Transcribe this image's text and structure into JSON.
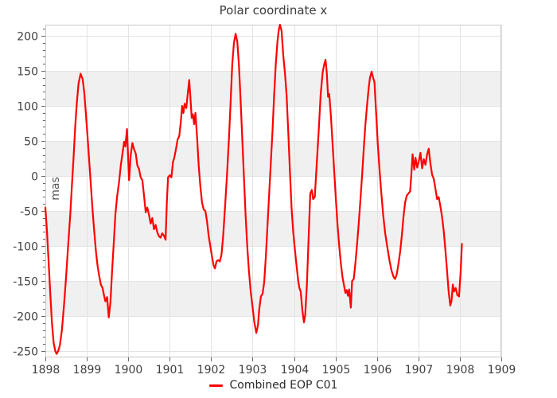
{
  "chart_data": {
    "type": "line",
    "title": "Polar coordinate x",
    "ylabel": "mas",
    "xlabel": "",
    "xlim": [
      1898,
      1909
    ],
    "ylim": [
      -259,
      216
    ],
    "x_ticks": [
      1898,
      1899,
      1900,
      1901,
      1902,
      1903,
      1904,
      1905,
      1906,
      1907,
      1908,
      1909
    ],
    "y_ticks": [
      -250,
      -200,
      -150,
      -100,
      -50,
      0,
      50,
      100,
      150,
      200
    ],
    "y_minor_step": 10,
    "grid_on": true,
    "legend_position": "bottom-center",
    "band_intervals": [
      [
        150,
        100
      ],
      [
        50,
        0
      ],
      [
        -50,
        -100
      ],
      [
        -150,
        -200
      ]
    ],
    "colors": {
      "band": "#f0f0f0",
      "grid": "#e3e3e3",
      "frame": "#c8c8c8",
      "tick": "#666666",
      "tick_label": "#404040"
    },
    "series": [
      {
        "name": "Combined EOP C01",
        "color": "#ff0000",
        "points": [
          [
            1898.0,
            -45
          ],
          [
            1898.04,
            -80
          ],
          [
            1898.08,
            -125
          ],
          [
            1898.12,
            -170
          ],
          [
            1898.16,
            -210
          ],
          [
            1898.2,
            -238
          ],
          [
            1898.24,
            -250
          ],
          [
            1898.27,
            -254
          ],
          [
            1898.31,
            -250
          ],
          [
            1898.35,
            -242
          ],
          [
            1898.4,
            -220
          ],
          [
            1898.45,
            -185
          ],
          [
            1898.5,
            -145
          ],
          [
            1898.55,
            -100
          ],
          [
            1898.6,
            -55
          ],
          [
            1898.64,
            -15
          ],
          [
            1898.68,
            25
          ],
          [
            1898.72,
            70
          ],
          [
            1898.76,
            105
          ],
          [
            1898.8,
            132
          ],
          [
            1898.85,
            146
          ],
          [
            1898.9,
            138
          ],
          [
            1898.94,
            118
          ],
          [
            1898.98,
            88
          ],
          [
            1899.02,
            55
          ],
          [
            1899.06,
            20
          ],
          [
            1899.1,
            -15
          ],
          [
            1899.14,
            -50
          ],
          [
            1899.18,
            -80
          ],
          [
            1899.22,
            -108
          ],
          [
            1899.26,
            -128
          ],
          [
            1899.3,
            -143
          ],
          [
            1899.34,
            -155
          ],
          [
            1899.38,
            -160
          ],
          [
            1899.42,
            -172
          ],
          [
            1899.45,
            -179
          ],
          [
            1899.49,
            -173
          ],
          [
            1899.53,
            -202
          ],
          [
            1899.57,
            -180
          ],
          [
            1899.61,
            -135
          ],
          [
            1899.65,
            -95
          ],
          [
            1899.69,
            -55
          ],
          [
            1899.73,
            -30
          ],
          [
            1899.78,
            -8
          ],
          [
            1899.82,
            15
          ],
          [
            1899.86,
            32
          ],
          [
            1899.9,
            49
          ],
          [
            1899.93,
            42
          ],
          [
            1899.97,
            67
          ],
          [
            1900.02,
            -6
          ],
          [
            1900.06,
            30
          ],
          [
            1900.1,
            47
          ],
          [
            1900.14,
            38
          ],
          [
            1900.18,
            32
          ],
          [
            1900.22,
            15
          ],
          [
            1900.26,
            10
          ],
          [
            1900.3,
            -2
          ],
          [
            1900.34,
            -6
          ],
          [
            1900.38,
            -28
          ],
          [
            1900.42,
            -52
          ],
          [
            1900.46,
            -45
          ],
          [
            1900.5,
            -55
          ],
          [
            1900.54,
            -68
          ],
          [
            1900.58,
            -60
          ],
          [
            1900.62,
            -76
          ],
          [
            1900.66,
            -70
          ],
          [
            1900.7,
            -80
          ],
          [
            1900.74,
            -86
          ],
          [
            1900.78,
            -88
          ],
          [
            1900.82,
            -82
          ],
          [
            1900.86,
            -85
          ],
          [
            1900.9,
            -91
          ],
          [
            1900.93,
            -40
          ],
          [
            1900.96,
            -2
          ],
          [
            1901.0,
            1
          ],
          [
            1901.04,
            -2
          ],
          [
            1901.08,
            20
          ],
          [
            1901.11,
            26
          ],
          [
            1901.15,
            38
          ],
          [
            1901.19,
            52
          ],
          [
            1901.23,
            57
          ],
          [
            1901.27,
            78
          ],
          [
            1901.3,
            100
          ],
          [
            1901.33,
            90
          ],
          [
            1901.36,
            103
          ],
          [
            1901.4,
            97
          ],
          [
            1901.44,
            120
          ],
          [
            1901.47,
            137
          ],
          [
            1901.5,
            112
          ],
          [
            1901.53,
            83
          ],
          [
            1901.56,
            88
          ],
          [
            1901.59,
            74
          ],
          [
            1901.62,
            90
          ],
          [
            1901.66,
            55
          ],
          [
            1901.7,
            15
          ],
          [
            1901.74,
            -15
          ],
          [
            1901.78,
            -38
          ],
          [
            1901.82,
            -48
          ],
          [
            1901.86,
            -50
          ],
          [
            1901.9,
            -65
          ],
          [
            1901.94,
            -85
          ],
          [
            1901.98,
            -100
          ],
          [
            1902.02,
            -115
          ],
          [
            1902.06,
            -128
          ],
          [
            1902.09,
            -132
          ],
          [
            1902.13,
            -122
          ],
          [
            1902.17,
            -120
          ],
          [
            1902.21,
            -122
          ],
          [
            1902.25,
            -112
          ],
          [
            1902.29,
            -85
          ],
          [
            1902.33,
            -48
          ],
          [
            1902.38,
            0
          ],
          [
            1902.43,
            55
          ],
          [
            1902.47,
            105
          ],
          [
            1902.51,
            160
          ],
          [
            1902.55,
            190
          ],
          [
            1902.59,
            203
          ],
          [
            1902.63,
            192
          ],
          [
            1902.67,
            158
          ],
          [
            1902.71,
            110
          ],
          [
            1902.75,
            55
          ],
          [
            1902.79,
            0
          ],
          [
            1902.83,
            -55
          ],
          [
            1902.87,
            -100
          ],
          [
            1902.91,
            -135
          ],
          [
            1902.95,
            -163
          ],
          [
            1903.0,
            -188
          ],
          [
            1903.04,
            -208
          ],
          [
            1903.09,
            -224
          ],
          [
            1903.13,
            -213
          ],
          [
            1903.16,
            -190
          ],
          [
            1903.2,
            -172
          ],
          [
            1903.24,
            -168
          ],
          [
            1903.28,
            -152
          ],
          [
            1903.32,
            -115
          ],
          [
            1903.36,
            -70
          ],
          [
            1903.4,
            -25
          ],
          [
            1903.44,
            20
          ],
          [
            1903.48,
            65
          ],
          [
            1903.52,
            115
          ],
          [
            1903.56,
            160
          ],
          [
            1903.6,
            192
          ],
          [
            1903.63,
            208
          ],
          [
            1903.66,
            216
          ],
          [
            1903.7,
            207
          ],
          [
            1903.74,
            172
          ],
          [
            1903.78,
            147
          ],
          [
            1903.82,
            115
          ],
          [
            1903.86,
            62
          ],
          [
            1903.9,
            8
          ],
          [
            1903.94,
            -45
          ],
          [
            1903.98,
            -80
          ],
          [
            1904.02,
            -105
          ],
          [
            1904.06,
            -128
          ],
          [
            1904.1,
            -150
          ],
          [
            1904.13,
            -160
          ],
          [
            1904.16,
            -165
          ],
          [
            1904.2,
            -192
          ],
          [
            1904.24,
            -209
          ],
          [
            1904.27,
            -198
          ],
          [
            1904.31,
            -155
          ],
          [
            1904.35,
            -90
          ],
          [
            1904.39,
            -25
          ],
          [
            1904.43,
            -20
          ],
          [
            1904.46,
            -33
          ],
          [
            1904.5,
            -30
          ],
          [
            1904.55,
            20
          ],
          [
            1904.6,
            70
          ],
          [
            1904.64,
            115
          ],
          [
            1904.69,
            148
          ],
          [
            1904.73,
            160
          ],
          [
            1904.76,
            166
          ],
          [
            1904.79,
            147
          ],
          [
            1904.82,
            113
          ],
          [
            1904.85,
            117
          ],
          [
            1904.89,
            85
          ],
          [
            1904.93,
            45
          ],
          [
            1904.97,
            5
          ],
          [
            1905.01,
            -35
          ],
          [
            1905.05,
            -70
          ],
          [
            1905.09,
            -100
          ],
          [
            1905.13,
            -125
          ],
          [
            1905.17,
            -145
          ],
          [
            1905.21,
            -158
          ],
          [
            1905.24,
            -167
          ],
          [
            1905.27,
            -163
          ],
          [
            1905.3,
            -171
          ],
          [
            1905.33,
            -162
          ],
          [
            1905.37,
            -188
          ],
          [
            1905.4,
            -150
          ],
          [
            1905.44,
            -147
          ],
          [
            1905.48,
            -125
          ],
          [
            1905.52,
            -98
          ],
          [
            1905.56,
            -68
          ],
          [
            1905.6,
            -35
          ],
          [
            1905.64,
            0
          ],
          [
            1905.68,
            38
          ],
          [
            1905.72,
            72
          ],
          [
            1905.76,
            100
          ],
          [
            1905.8,
            125
          ],
          [
            1905.83,
            140
          ],
          [
            1905.87,
            149
          ],
          [
            1905.91,
            140
          ],
          [
            1905.94,
            134
          ],
          [
            1905.98,
            90
          ],
          [
            1906.02,
            45
          ],
          [
            1906.06,
            10
          ],
          [
            1906.1,
            -20
          ],
          [
            1906.15,
            -55
          ],
          [
            1906.2,
            -82
          ],
          [
            1906.25,
            -102
          ],
          [
            1906.3,
            -120
          ],
          [
            1906.35,
            -135
          ],
          [
            1906.4,
            -144
          ],
          [
            1906.44,
            -147
          ],
          [
            1906.48,
            -140
          ],
          [
            1906.52,
            -125
          ],
          [
            1906.56,
            -108
          ],
          [
            1906.6,
            -85
          ],
          [
            1906.64,
            -58
          ],
          [
            1906.68,
            -38
          ],
          [
            1906.72,
            -28
          ],
          [
            1906.76,
            -25
          ],
          [
            1906.8,
            -22
          ],
          [
            1906.83,
            3
          ],
          [
            1906.86,
            31
          ],
          [
            1906.9,
            9
          ],
          [
            1906.93,
            26
          ],
          [
            1906.97,
            12
          ],
          [
            1907.01,
            21
          ],
          [
            1907.05,
            33
          ],
          [
            1907.09,
            11
          ],
          [
            1907.13,
            24
          ],
          [
            1907.17,
            16
          ],
          [
            1907.21,
            31
          ],
          [
            1907.25,
            39
          ],
          [
            1907.29,
            18
          ],
          [
            1907.33,
            2
          ],
          [
            1907.37,
            -4
          ],
          [
            1907.41,
            -18
          ],
          [
            1907.45,
            -33
          ],
          [
            1907.49,
            -30
          ],
          [
            1907.53,
            -43
          ],
          [
            1907.57,
            -58
          ],
          [
            1907.61,
            -78
          ],
          [
            1907.65,
            -105
          ],
          [
            1907.69,
            -135
          ],
          [
            1907.73,
            -165
          ],
          [
            1907.77,
            -185
          ],
          [
            1907.8,
            -178
          ],
          [
            1907.83,
            -155
          ],
          [
            1907.86,
            -165
          ],
          [
            1907.9,
            -160
          ],
          [
            1907.94,
            -170
          ],
          [
            1907.98,
            -172
          ],
          [
            1908.02,
            -135
          ],
          [
            1908.05,
            -97
          ]
        ]
      }
    ]
  }
}
